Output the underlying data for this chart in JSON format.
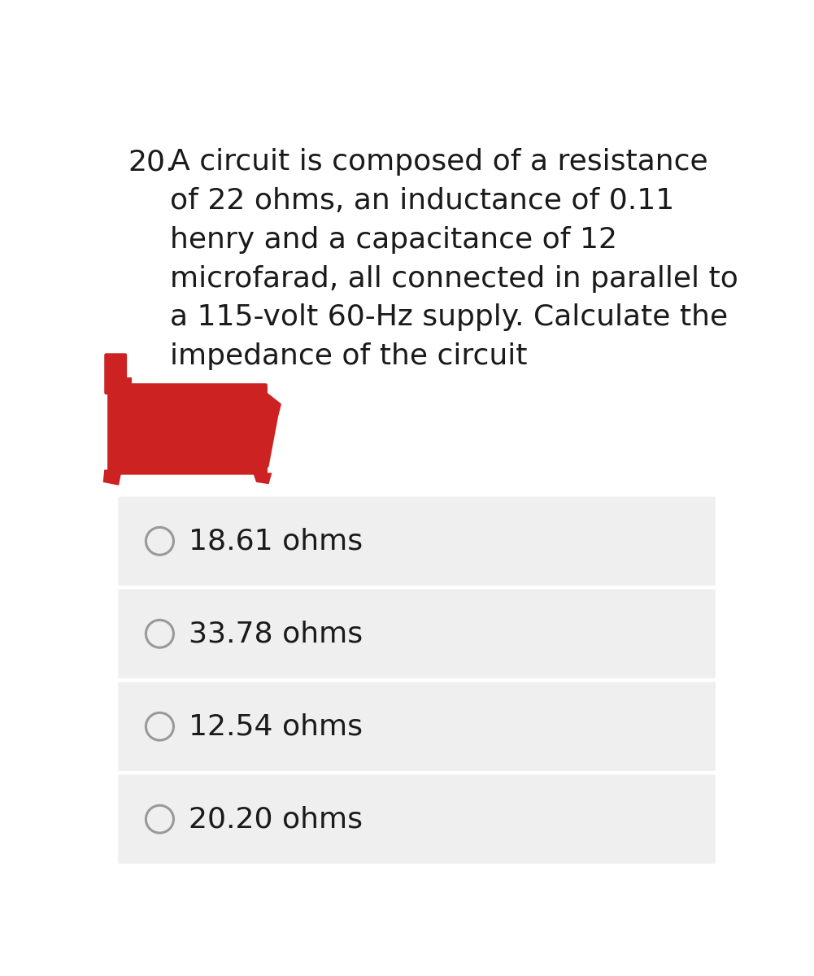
{
  "background_color": "#ffffff",
  "question_number": "20.",
  "question_lines": [
    "A circuit is composed of a resistance",
    "of 22 ohms, an inductance of 0.11",
    "henry and a capacitance of 12",
    "microfarad, all connected in parallel to",
    "a 115-volt 60-Hz supply. Calculate the",
    "impedance of the circuit"
  ],
  "options": [
    "18.61 ohms",
    "33.78 ohms",
    "12.54 ohms",
    "20.20 ohms"
  ],
  "option_bg_color": "#efefef",
  "option_text_color": "#1a1a1a",
  "question_text_color": "#1a1a1a",
  "circle_color": "#999999",
  "redact_color": "#cc2222",
  "font_size_question": 26,
  "font_size_option": 26
}
